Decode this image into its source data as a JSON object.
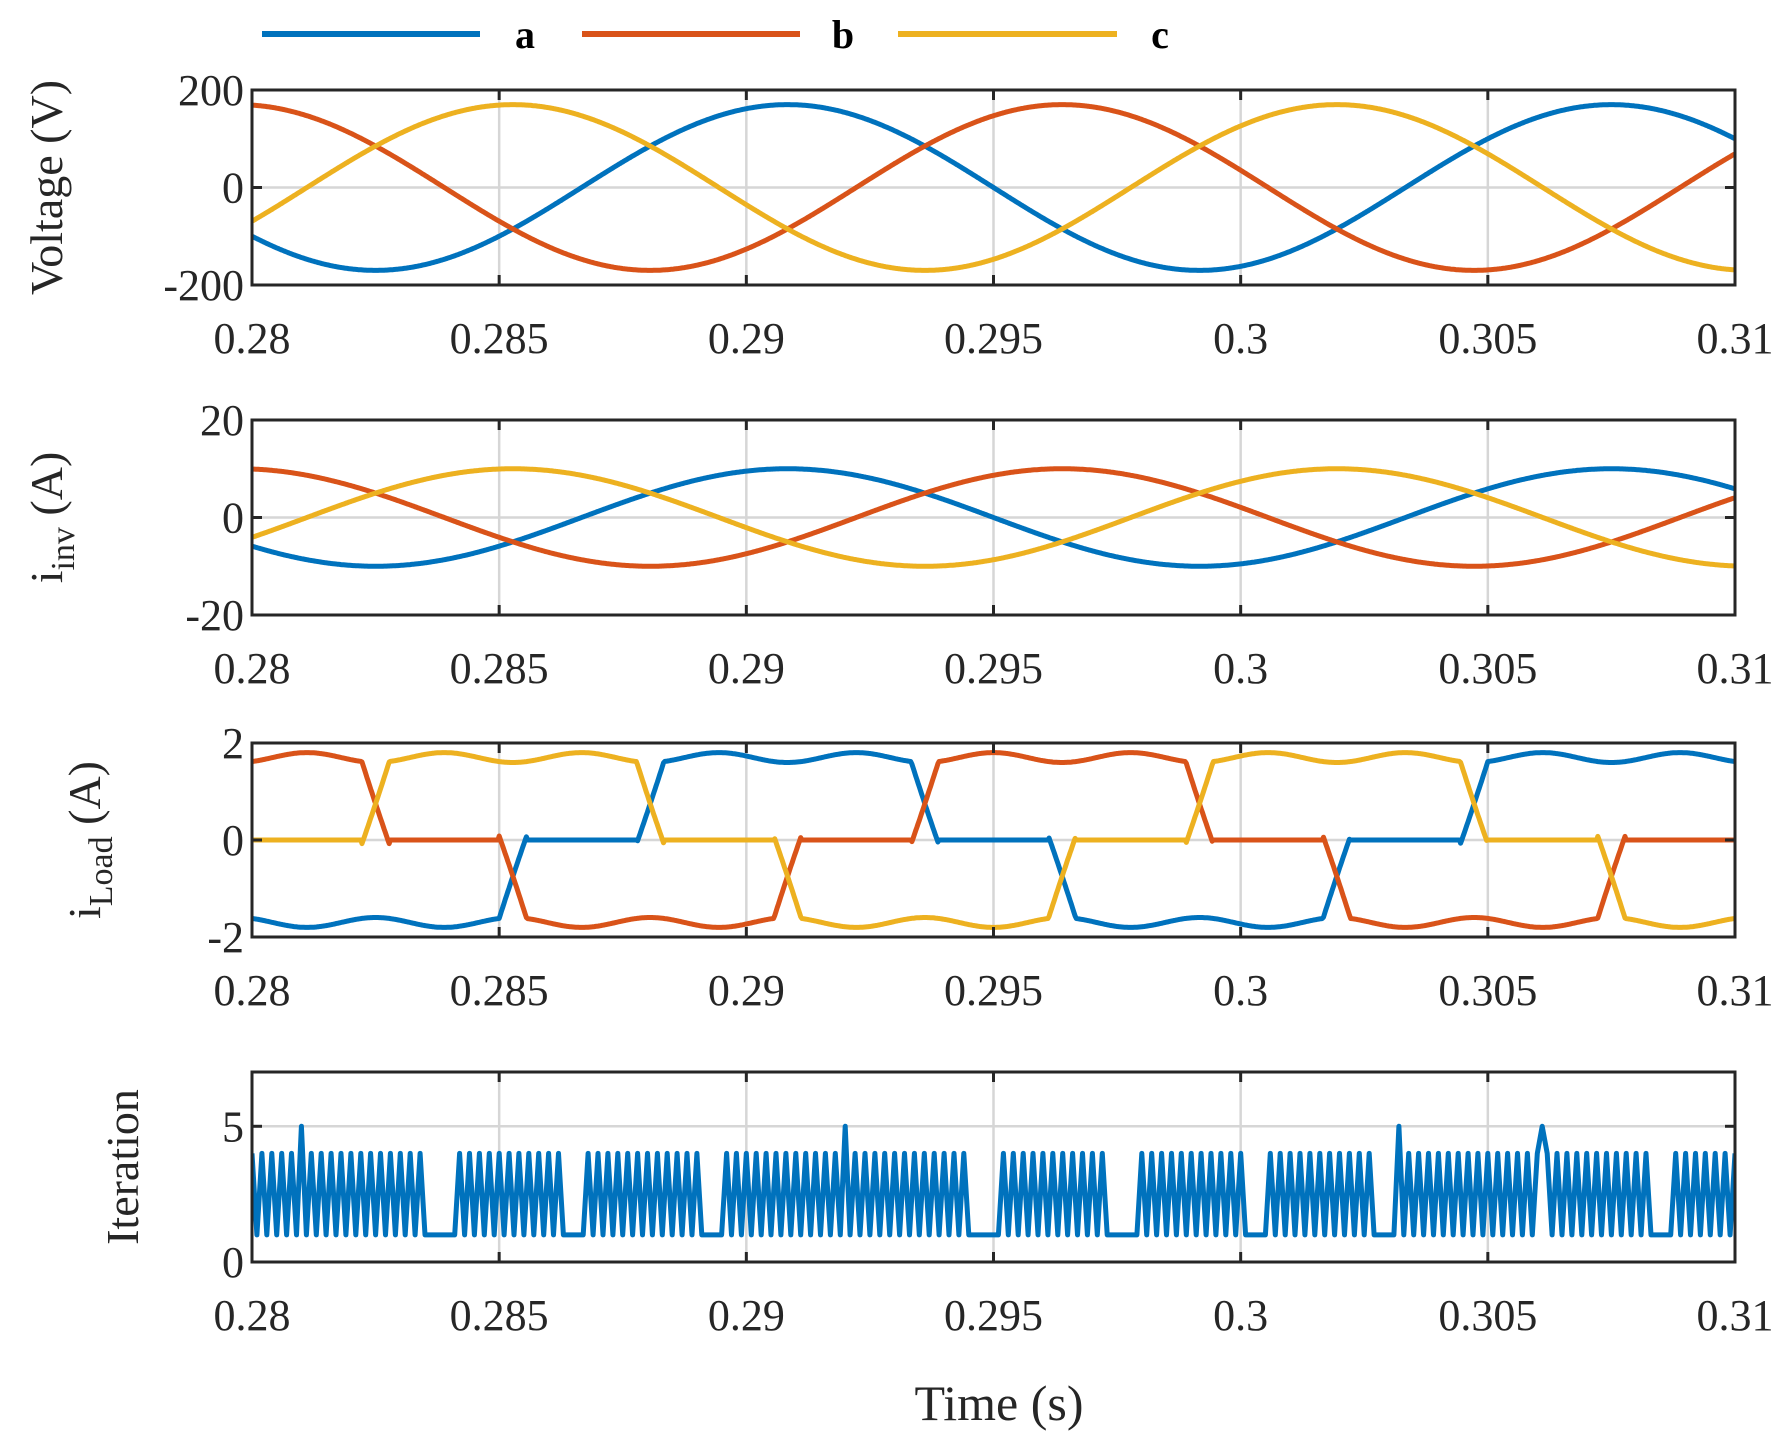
{
  "legend": [
    {
      "key": "a",
      "label": "a",
      "color": "#0072BD"
    },
    {
      "key": "b",
      "label": "b",
      "color": "#D95319"
    },
    {
      "key": "c",
      "label": "c",
      "color": "#EDB120"
    }
  ],
  "shared_xlabel": "Time (s)",
  "chart_data": [
    {
      "type": "line",
      "id": "voltage",
      "ylabel": "Voltage (V)",
      "xlim": [
        0.28,
        0.31
      ],
      "ylim": [
        -200,
        200
      ],
      "xticks": [
        0.28,
        0.285,
        0.29,
        0.295,
        0.3,
        0.305,
        0.31
      ],
      "xtick_labels": [
        "0.28",
        "0.285",
        "0.29",
        "0.295",
        "0.3",
        "0.305",
        "0.31"
      ],
      "yticks": [
        -200,
        0,
        200
      ],
      "ytick_labels": [
        "-200",
        "0",
        "200"
      ],
      "grid": true,
      "series": [
        {
          "name": "a",
          "model": "sine",
          "amplitude": 170,
          "frequency_hz": 60,
          "phase_deg": -72
        },
        {
          "name": "b",
          "model": "sine",
          "amplitude": 170,
          "frequency_hz": 60,
          "phase_deg": 168
        },
        {
          "name": "c",
          "model": "sine",
          "amplitude": 170,
          "frequency_hz": 60,
          "phase_deg": 48
        }
      ]
    },
    {
      "type": "line",
      "id": "inverter_current",
      "ylabel": "i",
      "ylabel_sub": "inv",
      "ylabel_unit": " (A)",
      "xlim": [
        0.28,
        0.31
      ],
      "ylim": [
        -20,
        20
      ],
      "xticks": [
        0.28,
        0.285,
        0.29,
        0.295,
        0.3,
        0.305,
        0.31
      ],
      "xtick_labels": [
        "0.28",
        "0.285",
        "0.29",
        "0.295",
        "0.3",
        "0.305",
        "0.31"
      ],
      "yticks": [
        -20,
        0,
        20
      ],
      "ytick_labels": [
        "-20",
        "0",
        "20"
      ],
      "grid": true,
      "series": [
        {
          "name": "a",
          "model": "sine",
          "amplitude": 10,
          "frequency_hz": 60,
          "phase_deg": -72
        },
        {
          "name": "b",
          "model": "sine",
          "amplitude": 10,
          "frequency_hz": 60,
          "phase_deg": 168
        },
        {
          "name": "c",
          "model": "sine",
          "amplitude": 10,
          "frequency_hz": 60,
          "phase_deg": 48
        }
      ]
    },
    {
      "type": "line",
      "id": "load_current",
      "ylabel": "i",
      "ylabel_sub": "Load",
      "ylabel_unit": " (A)",
      "xlim": [
        0.28,
        0.31
      ],
      "ylim": [
        -2,
        2
      ],
      "xticks": [
        0.28,
        0.285,
        0.29,
        0.295,
        0.3,
        0.305,
        0.31
      ],
      "xtick_labels": [
        "0.28",
        "0.285",
        "0.29",
        "0.295",
        "0.3",
        "0.305",
        "0.31"
      ],
      "yticks": [
        -2,
        0,
        2
      ],
      "ytick_labels": [
        "-2",
        "0",
        "2"
      ],
      "grid": true,
      "series": [
        {
          "name": "a",
          "model": "rectifier",
          "amplitude": 1.7,
          "frequency_hz": 60,
          "phase_deg": -72,
          "conduction_deg": 120
        },
        {
          "name": "b",
          "model": "rectifier",
          "amplitude": 1.7,
          "frequency_hz": 60,
          "phase_deg": 168,
          "conduction_deg": 120
        },
        {
          "name": "c",
          "model": "rectifier",
          "amplitude": 1.7,
          "frequency_hz": 60,
          "phase_deg": 48,
          "conduction_deg": 120
        }
      ]
    },
    {
      "type": "line",
      "id": "iteration",
      "ylabel": "Iteration",
      "xlim": [
        0.28,
        0.31
      ],
      "ylim": [
        0,
        7
      ],
      "xticks": [
        0.28,
        0.285,
        0.29,
        0.295,
        0.3,
        0.305,
        0.31
      ],
      "xtick_labels": [
        "0.28",
        "0.285",
        "0.29",
        "0.295",
        "0.3",
        "0.305",
        "0.31"
      ],
      "yticks": [
        0,
        5
      ],
      "ytick_labels": [
        "0",
        "5"
      ],
      "grid": true,
      "series": [
        {
          "name": "a",
          "model": "oscillation",
          "low": 1,
          "high": 4,
          "period_s": 0.0002,
          "dips_at": [
            0.2838,
            0.2865,
            0.2893,
            0.2948,
            0.2976,
            0.3003,
            0.303,
            0.3085
          ],
          "dip_width_s": 0.0005,
          "dip_value": 1,
          "peaks_at": [
            0.281,
            0.292,
            0.3032,
            0.3061
          ],
          "peak_value": 5
        }
      ]
    }
  ]
}
